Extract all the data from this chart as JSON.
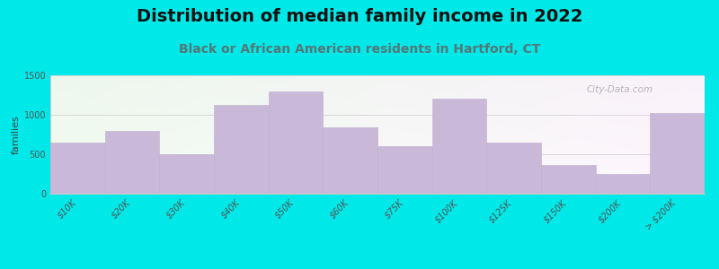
{
  "title": "Distribution of median family income in 2022",
  "subtitle": "Black or African American residents in Hartford, CT",
  "ylabel": "families",
  "categories": [
    "$10K",
    "$20K",
    "$30K",
    "$40K",
    "$50K",
    "$60K",
    "$75K",
    "$100K",
    "$125K",
    "$150K",
    "$200K",
    "> $200K"
  ],
  "values": [
    650,
    790,
    500,
    1130,
    1290,
    840,
    600,
    1200,
    650,
    365,
    250,
    1020
  ],
  "bar_color": "#c9b8d8",
  "bar_edge_color": "#c0afd0",
  "background_outer": "#00e8e8",
  "ylim": [
    0,
    1500
  ],
  "yticks": [
    0,
    500,
    1000,
    1500
  ],
  "title_fontsize": 14,
  "subtitle_fontsize": 10,
  "ylabel_fontsize": 8,
  "tick_fontsize": 7,
  "watermark_text": "City-Data.com",
  "watermark_color": "#aaaaaa",
  "grid_color": "#d8d8d8",
  "subtitle_color": "#557777"
}
